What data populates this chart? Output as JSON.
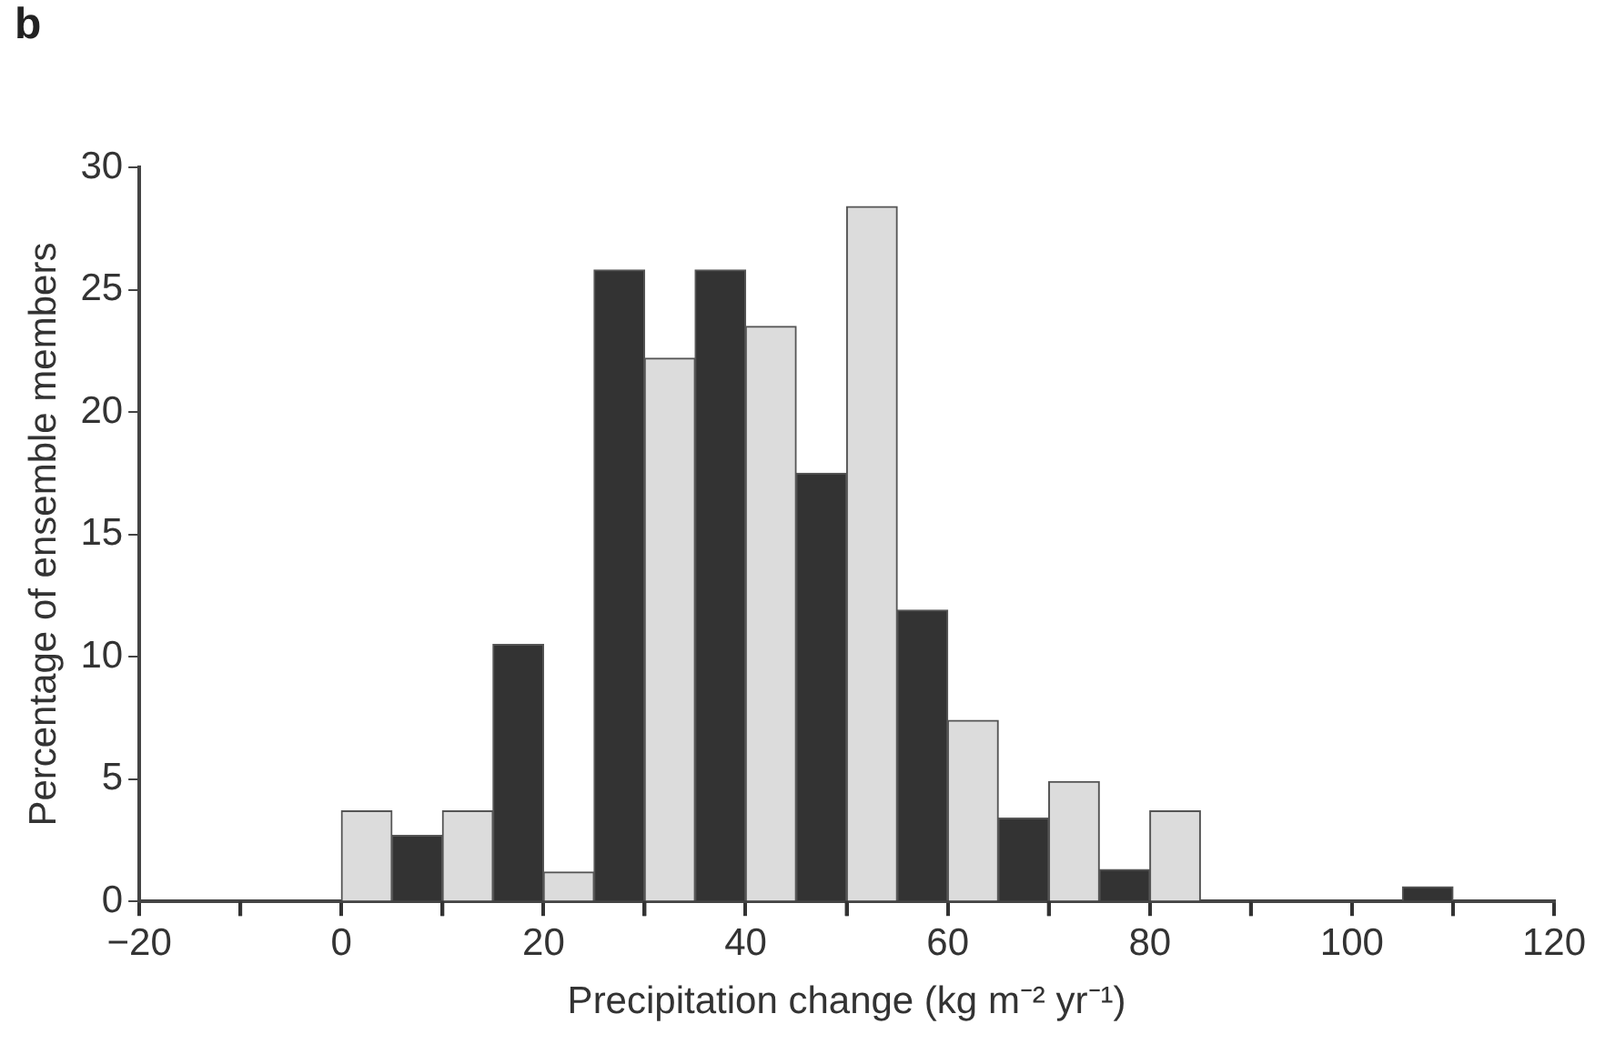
{
  "chart_data": {
    "type": "histogram",
    "xlabel": "Precipitation change (kg m⁻² yr⁻¹)",
    "ylabel": "Percentage of ensemble members",
    "annotations": [
      "b"
    ],
    "bins": [
      0,
      5,
      10,
      15,
      20,
      25,
      30,
      35,
      40,
      45,
      50,
      55,
      60,
      65,
      70,
      75,
      80,
      85,
      90,
      95,
      100,
      105,
      110
    ],
    "series": [
      {
        "color": "#dcdcdc",
        "values": [
          3.7,
          null,
          3.7,
          null,
          1.2,
          null,
          22.2,
          null,
          23.5,
          null,
          28.4,
          null,
          7.4,
          null,
          4.9,
          null,
          3.7,
          null,
          null,
          null,
          null,
          null
        ]
      },
      {
        "color": "#333333",
        "values": [
          null,
          2.7,
          null,
          10.5,
          null,
          25.8,
          null,
          25.8,
          null,
          17.5,
          null,
          11.9,
          null,
          3.4,
          null,
          1.3,
          null,
          null,
          null,
          null,
          null,
          0.6
        ]
      }
    ],
    "xlim": [
      -20,
      120
    ],
    "xticks": [
      -20,
      {
        "value": -10,
        "label": null
      },
      0,
      {
        "value": 10,
        "label": null
      },
      20,
      {
        "value": 30,
        "label": null
      },
      40,
      {
        "value": 50,
        "label": null
      },
      60,
      {
        "value": 70,
        "label": null
      },
      80,
      {
        "value": 90,
        "label": null
      },
      100,
      {
        "value": 110,
        "label": null
      },
      120
    ],
    "ylim": [
      0,
      30
    ],
    "yticks": [
      0,
      5,
      10,
      15,
      20,
      25,
      30
    ],
    "grid": false,
    "legend": false
  }
}
